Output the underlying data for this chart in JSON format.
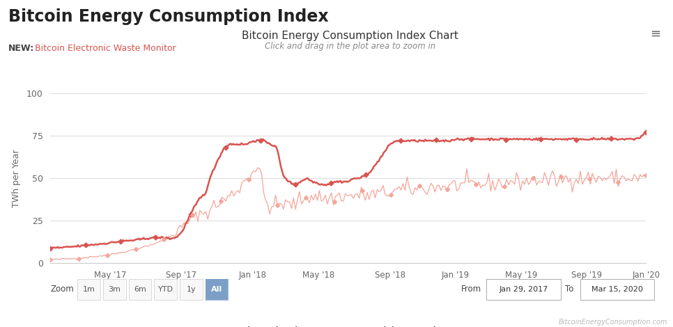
{
  "title_main": "Bitcoin Energy Consumption Index",
  "subtitle_new": "NEW:",
  "subtitle_link": "Bitcoin Electronic Waste Monitor",
  "chart_title": "Bitcoin Energy Consumption Index Chart",
  "chart_subtitle": "Click and drag in the plot area to zoom in",
  "ylabel": "TWh per Year",
  "background_color": "#ffffff",
  "plot_bg_color": "#ffffff",
  "grid_color": "#dddddd",
  "estimated_color": "#d9534f",
  "minimum_color": "#f4a59a",
  "title_color": "#222222",
  "subtitle_link_color": "#d9534f",
  "new_color": "#444444",
  "ylim": [
    0,
    100
  ],
  "yticks": [
    0,
    25,
    50,
    75,
    100
  ],
  "legend_estimated": "Estimated TWh per Year",
  "legend_minimum": "Minimum TWh per Year",
  "zoom_label": "Zoom",
  "zoom_buttons": [
    "1m",
    "3m",
    "6m",
    "YTD",
    "1y",
    "All"
  ],
  "active_button": "All",
  "from_label": "From",
  "from_date": "Jan 29, 2017",
  "to_label": "To",
  "to_date": "Mar 15, 2020",
  "watermark": "BitcoinEnergyConsumption.com",
  "xtick_labels": [
    "May '17",
    "Sep '17",
    "Jan '18",
    "May '18",
    "Sep '18",
    "Jan '19",
    "May '19",
    "Sep '19",
    "Jan '20"
  ],
  "estimated_x": [
    0,
    2,
    4,
    6,
    8,
    10,
    12,
    14,
    15,
    16,
    17,
    18,
    19,
    20,
    21,
    22,
    23,
    24,
    25,
    26,
    27,
    28,
    29,
    30,
    31,
    32,
    33,
    34,
    35,
    36,
    37,
    38,
    39,
    40,
    41,
    42,
    43,
    44,
    45,
    46,
    47,
    48,
    49,
    50,
    51,
    52,
    53,
    54,
    55,
    56,
    57,
    58,
    59,
    60,
    61,
    62,
    63,
    64,
    65,
    66,
    67,
    68,
    69,
    70,
    71,
    72,
    73,
    74,
    75,
    76,
    77,
    78,
    79,
    80,
    81,
    82,
    83,
    84,
    85,
    86,
    87,
    88,
    89,
    90,
    91,
    92,
    93,
    94,
    95,
    96,
    97,
    98,
    99,
    100
  ],
  "estimated_y": [
    9,
    9.2,
    9.8,
    10.5,
    11.2,
    12,
    13,
    13.5,
    14,
    14.5,
    15,
    15,
    15,
    14.5,
    15,
    18,
    25,
    32,
    38,
    41,
    52,
    60,
    67,
    70,
    70,
    70,
    70,
    72,
    72,
    72,
    70,
    68,
    52,
    48,
    46,
    48,
    50,
    48,
    47,
    46,
    47,
    48,
    48,
    48,
    50,
    50,
    52,
    55,
    60,
    65,
    70,
    72,
    72,
    72,
    72,
    72,
    72,
    72,
    72,
    72,
    72,
    73,
    73,
    73,
    73,
    73,
    73,
    73,
    73,
    73,
    73,
    73,
    73,
    73,
    73,
    73,
    73,
    73,
    73,
    73,
    73,
    73,
    73,
    73,
    73,
    73,
    73,
    73,
    73,
    73,
    73,
    73,
    74,
    77
  ],
  "minimum_x_base": [
    0,
    5,
    10,
    14,
    15,
    16,
    17,
    18,
    19,
    20,
    21,
    22,
    23,
    24,
    25,
    26,
    27,
    28,
    29,
    30,
    31,
    32,
    33,
    34,
    35,
    36,
    37,
    38,
    39,
    40,
    41,
    42,
    43,
    44,
    45,
    46,
    47,
    48,
    49,
    50,
    51,
    52,
    53,
    54,
    55,
    56,
    57,
    58,
    59,
    60,
    61,
    62,
    63,
    64,
    65,
    66,
    67,
    68,
    69,
    70,
    71,
    72,
    73,
    74,
    75,
    76,
    77,
    78,
    79,
    80,
    81,
    82,
    83,
    84,
    85,
    86,
    87,
    88,
    89,
    90,
    91,
    92,
    93,
    94,
    95,
    96,
    97,
    98,
    99,
    100
  ],
  "minimum_y_base": [
    2,
    3,
    5,
    8,
    9,
    10,
    11,
    12,
    14,
    16,
    18,
    21,
    24,
    27,
    29,
    30,
    32,
    35,
    37,
    39,
    42,
    46,
    50,
    55,
    57,
    37,
    33,
    34,
    35,
    34,
    35,
    37,
    39,
    40,
    39,
    38,
    38,
    39,
    40,
    39,
    40,
    40,
    40,
    40,
    41,
    41,
    42,
    43,
    43,
    44,
    43,
    44,
    44,
    45,
    45,
    45,
    45,
    46,
    46,
    46,
    46,
    46,
    47,
    47,
    47,
    47,
    48,
    48,
    48,
    48,
    49,
    49,
    49,
    49,
    49,
    49,
    50,
    50,
    50,
    50,
    50,
    50,
    50,
    50,
    50,
    50,
    50,
    50,
    50,
    50
  ],
  "xtick_positions": [
    10,
    22,
    34,
    45,
    57,
    68,
    79,
    90,
    100
  ],
  "noise_seed": 42
}
